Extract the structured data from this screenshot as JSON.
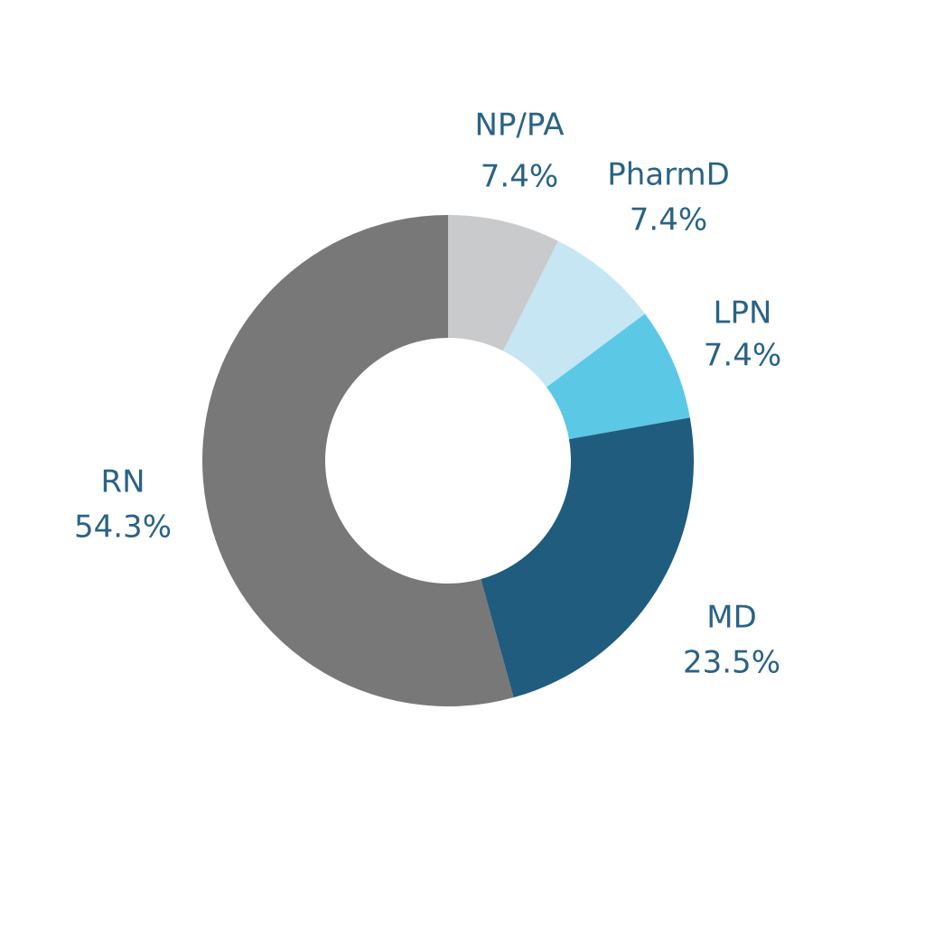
{
  "chart_data": {
    "type": "donut",
    "categories": [
      "NP/PA",
      "PharmD",
      "LPN",
      "MD",
      "RN"
    ],
    "values": [
      7.4,
      7.4,
      7.4,
      23.5,
      54.3
    ],
    "value_labels": [
      "7.4%",
      "7.4%",
      "7.4%",
      "23.5%",
      "54.3%"
    ],
    "colors": [
      "#c9cacb",
      "#c5e6f2",
      "#5bc8e5",
      "#1f5c7e",
      "#787878"
    ]
  }
}
